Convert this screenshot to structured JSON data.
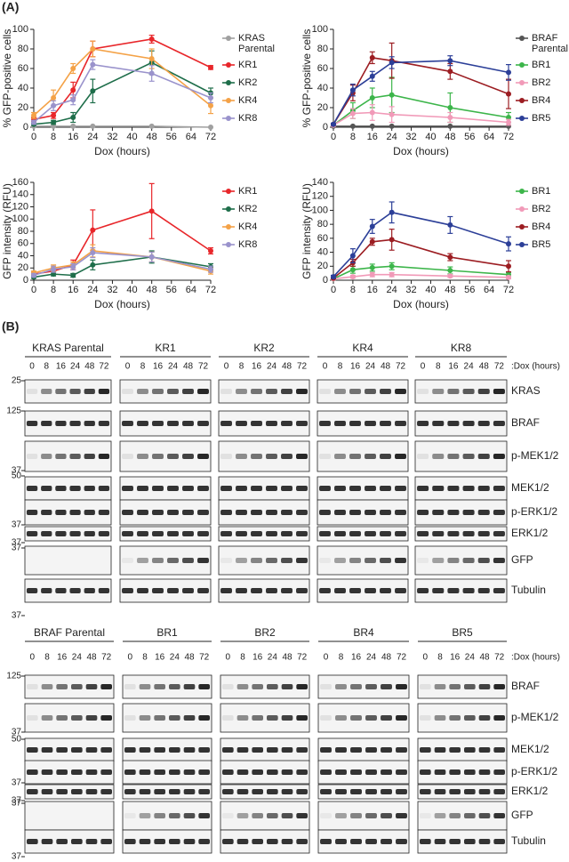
{
  "panel_labels": [
    "(A)",
    "(B)"
  ],
  "chart_data": [
    {
      "type": "line",
      "ylabel": "% GFP-positive cells",
      "xlabel": "Dox (hours)",
      "x": [
        0,
        8,
        16,
        24,
        48,
        72
      ],
      "xlim": [
        0,
        72
      ],
      "xticks": [
        0,
        8,
        16,
        24,
        32,
        40,
        48,
        56,
        64,
        72
      ],
      "ylim": [
        0,
        100
      ],
      "yticks": [
        0,
        20,
        40,
        60,
        80,
        100
      ],
      "series": [
        {
          "name": "KRAS Parental",
          "color": "#a0a0a0",
          "values": [
            1,
            1,
            1,
            1,
            1,
            0
          ]
        },
        {
          "name": "KR1",
          "color": "#e8262a",
          "values": [
            8,
            12,
            38,
            80,
            90,
            61
          ],
          "errors": [
            2,
            3,
            8,
            8,
            4,
            2
          ]
        },
        {
          "name": "KR2",
          "color": "#1e6e4a",
          "values": [
            3,
            5,
            10,
            37,
            66,
            35
          ],
          "errors": [
            1,
            2,
            5,
            12,
            12,
            5
          ]
        },
        {
          "name": "KR4",
          "color": "#f4a247",
          "values": [
            12,
            30,
            60,
            80,
            70,
            22
          ],
          "errors": [
            3,
            8,
            5,
            8,
            10,
            8
          ]
        },
        {
          "name": "KR8",
          "color": "#9a93cc",
          "values": [
            5,
            22,
            28,
            64,
            55,
            30
          ],
          "errors": [
            2,
            5,
            5,
            5,
            8,
            5
          ]
        }
      ]
    },
    {
      "type": "line",
      "ylabel": "% GFP-positive cells",
      "xlabel": "Dox (hours)",
      "x": [
        0,
        8,
        16,
        24,
        48,
        72
      ],
      "xlim": [
        0,
        72
      ],
      "xticks": [
        0,
        8,
        16,
        24,
        32,
        40,
        48,
        56,
        64,
        72
      ],
      "ylim": [
        0,
        100
      ],
      "yticks": [
        0,
        20,
        40,
        60,
        80,
        100
      ],
      "series": [
        {
          "name": "BRAF Parental",
          "color": "#555555",
          "values": [
            1,
            1,
            1,
            1,
            1,
            1
          ]
        },
        {
          "name": "BR1",
          "color": "#3cb54a",
          "values": [
            2,
            17,
            30,
            33,
            20,
            10
          ],
          "errors": [
            1,
            8,
            10,
            18,
            15,
            5
          ]
        },
        {
          "name": "BR2",
          "color": "#f19ab8",
          "values": [
            2,
            14,
            15,
            13,
            10,
            5
          ],
          "errors": [
            1,
            5,
            8,
            8,
            5,
            3
          ]
        },
        {
          "name": "BR4",
          "color": "#9c1d22",
          "values": [
            3,
            35,
            71,
            68,
            57,
            34
          ],
          "errors": [
            1,
            8,
            6,
            18,
            8,
            15
          ]
        },
        {
          "name": "BR5",
          "color": "#2c3f98",
          "values": [
            3,
            38,
            52,
            66,
            68,
            56
          ],
          "errors": [
            1,
            6,
            5,
            6,
            5,
            8
          ]
        }
      ]
    },
    {
      "type": "line",
      "ylabel": "GFP intensity (RFU)",
      "xlabel": "Dox (hours)",
      "x": [
        0,
        8,
        16,
        24,
        48,
        72
      ],
      "xlim": [
        0,
        72
      ],
      "xticks": [
        0,
        8,
        16,
        24,
        32,
        40,
        48,
        56,
        64,
        72
      ],
      "ylim": [
        0,
        160
      ],
      "yticks": [
        0,
        20,
        40,
        60,
        80,
        100,
        120,
        140,
        160
      ],
      "series": [
        {
          "name": "KR1",
          "color": "#e8262a",
          "values": [
            10,
            15,
            25,
            82,
            113,
            48
          ],
          "errors": [
            3,
            5,
            8,
            33,
            45,
            5
          ]
        },
        {
          "name": "KR2",
          "color": "#1e6e4a",
          "values": [
            5,
            10,
            8,
            25,
            38,
            22
          ],
          "errors": [
            2,
            3,
            3,
            8,
            10,
            5
          ]
        },
        {
          "name": "KR4",
          "color": "#f4a247",
          "values": [
            12,
            20,
            25,
            48,
            38,
            15
          ],
          "errors": [
            3,
            5,
            5,
            10,
            8,
            5
          ]
        },
        {
          "name": "KR8",
          "color": "#9a93cc",
          "values": [
            8,
            18,
            22,
            45,
            38,
            18
          ],
          "errors": [
            3,
            5,
            5,
            8,
            8,
            5
          ]
        }
      ]
    },
    {
      "type": "line",
      "ylabel": "GFP intensity (RFU)",
      "xlabel": "Dox (hours)",
      "x": [
        0,
        8,
        16,
        24,
        48,
        72
      ],
      "xlim": [
        0,
        72
      ],
      "xticks": [
        0,
        8,
        16,
        24,
        32,
        40,
        48,
        56,
        64,
        72
      ],
      "ylim": [
        0,
        140
      ],
      "yticks": [
        0,
        20,
        40,
        60,
        80,
        100,
        120,
        140
      ],
      "series": [
        {
          "name": "BR1",
          "color": "#3cb54a",
          "values": [
            2,
            15,
            18,
            20,
            14,
            8
          ],
          "errors": [
            1,
            5,
            5,
            5,
            5,
            3
          ]
        },
        {
          "name": "BR2",
          "color": "#f19ab8",
          "values": [
            2,
            5,
            8,
            8,
            6,
            4
          ],
          "errors": [
            1,
            2,
            3,
            3,
            2,
            2
          ]
        },
        {
          "name": "BR4",
          "color": "#9c1d22",
          "values": [
            3,
            25,
            55,
            58,
            33,
            20
          ],
          "errors": [
            1,
            5,
            5,
            15,
            5,
            8
          ]
        },
        {
          "name": "BR5",
          "color": "#2c3f98",
          "values": [
            5,
            35,
            77,
            97,
            79,
            52
          ],
          "errors": [
            2,
            10,
            10,
            15,
            12,
            10
          ]
        }
      ]
    }
  ],
  "blots": [
    {
      "cell_lines": [
        "KRAS Parental",
        "KR1",
        "KR2",
        "KR4",
        "KR8"
      ],
      "timepoints": [
        "0",
        "8",
        "16",
        "24",
        "48",
        "72"
      ],
      "dox_label": ":Dox (hours)",
      "rows": [
        "KRAS",
        "BRAF",
        "p-MEK1/2",
        "MEK1/2",
        "p-ERK1/2",
        "ERK1/2",
        "GFP",
        "Tubulin"
      ],
      "markers": [
        "25",
        "125",
        "37",
        "50",
        "37",
        "37",
        "37",
        "37"
      ]
    },
    {
      "cell_lines": [
        "BRAF Parental",
        "BR1",
        "BR2",
        "BR4",
        "BR5"
      ],
      "timepoints": [
        "0",
        "8",
        "16",
        "24",
        "48",
        "72"
      ],
      "dox_label": ":Dox (hours)",
      "rows": [
        "BRAF",
        "p-MEK1/2",
        "MEK1/2",
        "p-ERK1/2",
        "ERK1/2",
        "GFP",
        "Tubulin"
      ],
      "markers": [
        "125",
        "37",
        "50",
        "37",
        "37",
        "37",
        "37"
      ]
    }
  ]
}
